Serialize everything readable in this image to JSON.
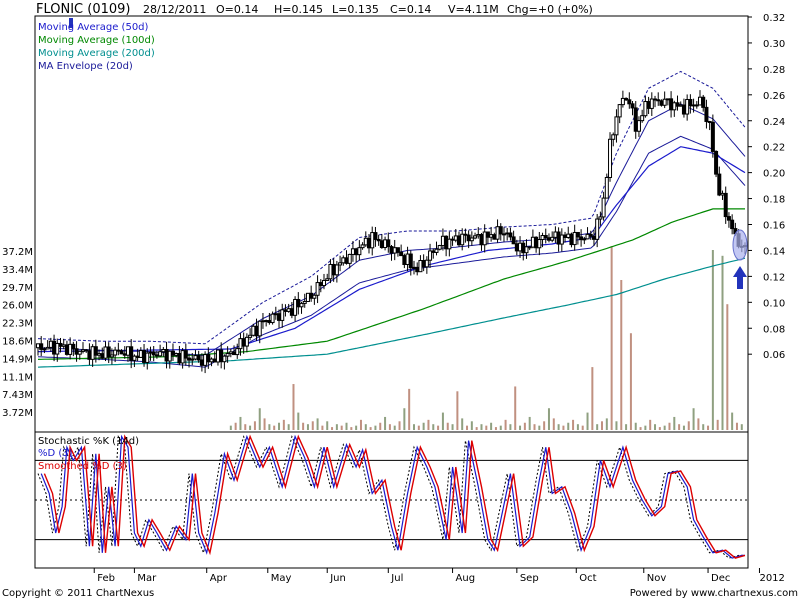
{
  "header": {
    "symbol": "FLONIC (0109)",
    "date": "28/12/2011",
    "open": "O=0.14",
    "high": "H=0.145",
    "low": "L=0.135",
    "close": "C=0.14",
    "volume": "V=4.11M",
    "change": "Chg=+0 (+0%)"
  },
  "footer": {
    "copyright": "Copyright © 2011 ChartNexus",
    "powered": "Powered by www.chartnexus.com"
  },
  "colors": {
    "candle": "#000000",
    "ma50": "#1a1acc",
    "ma100": "#008800",
    "ma200": "#008f8f",
    "envelope": "#1a1a99",
    "volume_up": "#8fa080",
    "volume_down": "#c09080",
    "stoch_k": "#000000",
    "stoch_d": "#1a1acc",
    "stoch_sd": "#dd0000",
    "highlight": "#aab0ee",
    "arrow": "#2233bb"
  },
  "chart_data": {
    "type": "line",
    "subtype": "candlestick",
    "price_axis": {
      "ticks": [
        "0.32",
        "0.30",
        "0.28",
        "0.26",
        "0.24",
        "0.22",
        "0.20",
        "0.18",
        "0.16",
        "0.14",
        "0.12",
        "0.10",
        "0.08",
        "0.06"
      ],
      "ylim": [
        0.0,
        0.32
      ]
    },
    "volume_axis": {
      "ticks": [
        "37.2M",
        "33.4M",
        "29.7M",
        "26.0M",
        "22.3M",
        "18.6M",
        "14.9M",
        "11.1M",
        "7.43M",
        "3.72M"
      ]
    },
    "x_ticks": [
      "Feb",
      "Mar",
      "Apr",
      "May",
      "Jun",
      "Jul",
      "Aug",
      "Sep",
      "Oct",
      "Nov",
      "Dec",
      "2012"
    ],
    "legend": [
      {
        "key": "ma50",
        "label": "Moving Average (50d)"
      },
      {
        "key": "ma100",
        "label": "Moving Average (100d)"
      },
      {
        "key": "ma200",
        "label": "Moving Average (200d)"
      },
      {
        "key": "envelope",
        "label": "MA Envelope (20d)"
      }
    ],
    "stochastic": {
      "legend": [
        {
          "key": "stoch_k",
          "label": "Stochastic %K (14d)"
        },
        {
          "key": "stoch_d",
          "label": "%D (3)"
        },
        {
          "key": "stoch_sd",
          "label": "Smoothed %D (3)"
        }
      ],
      "levels": [
        80,
        50,
        20
      ]
    },
    "price_path": [
      [
        0,
        0.065
      ],
      [
        14,
        0.066
      ],
      [
        26,
        0.062
      ],
      [
        40,
        0.06
      ],
      [
        53,
        0.062
      ],
      [
        60,
        0.058
      ],
      [
        67,
        0.059
      ],
      [
        75,
        0.061
      ],
      [
        90,
        0.058
      ],
      [
        104,
        0.055
      ],
      [
        120,
        0.06
      ],
      [
        140,
        0.085
      ],
      [
        158,
        0.095
      ],
      [
        170,
        0.105
      ],
      [
        183,
        0.125
      ],
      [
        196,
        0.138
      ],
      [
        208,
        0.15
      ],
      [
        222,
        0.14
      ],
      [
        236,
        0.125
      ],
      [
        250,
        0.145
      ],
      [
        264,
        0.15
      ],
      [
        278,
        0.15
      ],
      [
        290,
        0.155
      ],
      [
        300,
        0.14
      ],
      [
        315,
        0.15
      ],
      [
        330,
        0.15
      ],
      [
        345,
        0.15
      ],
      [
        351,
        0.17
      ],
      [
        356,
        0.22
      ],
      [
        361,
        0.25
      ],
      [
        367,
        0.26
      ],
      [
        372,
        0.235
      ],
      [
        380,
        0.255
      ],
      [
        390,
        0.255
      ],
      [
        400,
        0.25
      ],
      [
        413,
        0.255
      ],
      [
        418,
        0.235
      ],
      [
        423,
        0.19
      ],
      [
        428,
        0.17
      ],
      [
        434,
        0.15
      ],
      [
        440,
        0.14
      ]
    ],
    "ma50": [
      [
        0,
        0.062
      ],
      [
        60,
        0.063
      ],
      [
        120,
        0.064
      ],
      [
        160,
        0.08
      ],
      [
        200,
        0.11
      ],
      [
        240,
        0.128
      ],
      [
        280,
        0.14
      ],
      [
        320,
        0.145
      ],
      [
        345,
        0.15
      ],
      [
        360,
        0.175
      ],
      [
        380,
        0.205
      ],
      [
        400,
        0.22
      ],
      [
        420,
        0.215
      ],
      [
        440,
        0.2
      ]
    ],
    "ma100": [
      [
        0,
        0.056
      ],
      [
        80,
        0.058
      ],
      [
        130,
        0.062
      ],
      [
        180,
        0.07
      ],
      [
        240,
        0.095
      ],
      [
        290,
        0.118
      ],
      [
        330,
        0.132
      ],
      [
        350,
        0.14
      ],
      [
        370,
        0.148
      ],
      [
        395,
        0.162
      ],
      [
        420,
        0.172
      ],
      [
        440,
        0.172
      ]
    ],
    "ma200": [
      [
        0,
        0.05
      ],
      [
        120,
        0.055
      ],
      [
        180,
        0.06
      ],
      [
        240,
        0.075
      ],
      [
        290,
        0.088
      ],
      [
        330,
        0.098
      ],
      [
        360,
        0.106
      ],
      [
        390,
        0.118
      ],
      [
        420,
        0.128
      ],
      [
        440,
        0.134
      ]
    ],
    "envelope_upper": [
      [
        0,
        0.072
      ],
      [
        40,
        0.07
      ],
      [
        70,
        0.07
      ],
      [
        104,
        0.068
      ],
      [
        140,
        0.1
      ],
      [
        170,
        0.12
      ],
      [
        200,
        0.15
      ],
      [
        230,
        0.155
      ],
      [
        260,
        0.155
      ],
      [
        290,
        0.158
      ],
      [
        320,
        0.16
      ],
      [
        345,
        0.165
      ],
      [
        360,
        0.215
      ],
      [
        380,
        0.265
      ],
      [
        400,
        0.278
      ],
      [
        420,
        0.265
      ],
      [
        440,
        0.235
      ]
    ],
    "envelope_lower": [
      [
        0,
        0.058
      ],
      [
        40,
        0.056
      ],
      [
        70,
        0.054
      ],
      [
        104,
        0.05
      ],
      [
        140,
        0.075
      ],
      [
        170,
        0.09
      ],
      [
        200,
        0.115
      ],
      [
        230,
        0.125
      ],
      [
        260,
        0.13
      ],
      [
        290,
        0.135
      ],
      [
        320,
        0.138
      ],
      [
        345,
        0.142
      ],
      [
        360,
        0.17
      ],
      [
        380,
        0.215
      ],
      [
        400,
        0.228
      ],
      [
        420,
        0.218
      ],
      [
        440,
        0.19
      ]
    ],
    "volume_pattern": [
      0.6,
      0.2,
      0.4,
      0.3,
      0.5,
      0.2,
      0.3,
      0.7,
      0.4,
      0.2,
      0.3,
      0.5,
      0.9,
      0.4,
      0.3,
      0.6,
      1.5,
      0.8,
      0.4,
      0.3,
      0.5,
      0.7,
      0.4,
      0.3,
      1.2,
      0.5,
      0.4,
      0.6,
      0.8,
      0.3
    ],
    "volume_spikes": [
      [
        160,
        9.5
      ],
      [
        230,
        8.5
      ],
      [
        262,
        8.0
      ],
      [
        297,
        9.0
      ],
      [
        345,
        13.0
      ],
      [
        357,
        38.0
      ],
      [
        362,
        31.0
      ],
      [
        370,
        20.0
      ],
      [
        420,
        37.2
      ],
      [
        426,
        36.0
      ],
      [
        430,
        26.0
      ]
    ],
    "stoch_k_path": [
      [
        0,
        70
      ],
      [
        5,
        55
      ],
      [
        9,
        25
      ],
      [
        13,
        45
      ],
      [
        16,
        90
      ],
      [
        20,
        80
      ],
      [
        25,
        90
      ],
      [
        30,
        15
      ],
      [
        34,
        85
      ],
      [
        38,
        10
      ],
      [
        42,
        60
      ],
      [
        46,
        15
      ],
      [
        50,
        98
      ],
      [
        54,
        90
      ],
      [
        58,
        25
      ],
      [
        62,
        15
      ],
      [
        67,
        35
      ],
      [
        72,
        25
      ],
      [
        78,
        12
      ],
      [
        84,
        30
      ],
      [
        90,
        20
      ],
      [
        94,
        70
      ],
      [
        98,
        25
      ],
      [
        103,
        10
      ],
      [
        108,
        40
      ],
      [
        114,
        85
      ],
      [
        120,
        65
      ],
      [
        128,
        98
      ],
      [
        136,
        75
      ],
      [
        142,
        90
      ],
      [
        150,
        60
      ],
      [
        158,
        98
      ],
      [
        164,
        82
      ],
      [
        170,
        60
      ],
      [
        176,
        90
      ],
      [
        182,
        60
      ],
      [
        190,
        92
      ],
      [
        196,
        75
      ],
      [
        200,
        88
      ],
      [
        206,
        55
      ],
      [
        212,
        65
      ],
      [
        218,
        30
      ],
      [
        222,
        12
      ],
      [
        228,
        55
      ],
      [
        234,
        90
      ],
      [
        240,
        75
      ],
      [
        245,
        60
      ],
      [
        252,
        20
      ],
      [
        256,
        75
      ],
      [
        262,
        25
      ],
      [
        266,
        95
      ],
      [
        272,
        60
      ],
      [
        278,
        20
      ],
      [
        282,
        12
      ],
      [
        286,
        35
      ],
      [
        292,
        70
      ],
      [
        298,
        15
      ],
      [
        304,
        22
      ],
      [
        310,
        65
      ],
      [
        314,
        90
      ],
      [
        318,
        55
      ],
      [
        324,
        60
      ],
      [
        330,
        40
      ],
      [
        336,
        12
      ],
      [
        342,
        30
      ],
      [
        348,
        80
      ],
      [
        354,
        60
      ],
      [
        362,
        90
      ],
      [
        368,
        65
      ],
      [
        374,
        50
      ],
      [
        380,
        38
      ],
      [
        386,
        45
      ],
      [
        390,
        70
      ],
      [
        396,
        72
      ],
      [
        402,
        60
      ],
      [
        406,
        35
      ],
      [
        412,
        22
      ],
      [
        418,
        10
      ],
      [
        424,
        12
      ],
      [
        430,
        6
      ],
      [
        436,
        8
      ],
      [
        440,
        8
      ]
    ]
  }
}
